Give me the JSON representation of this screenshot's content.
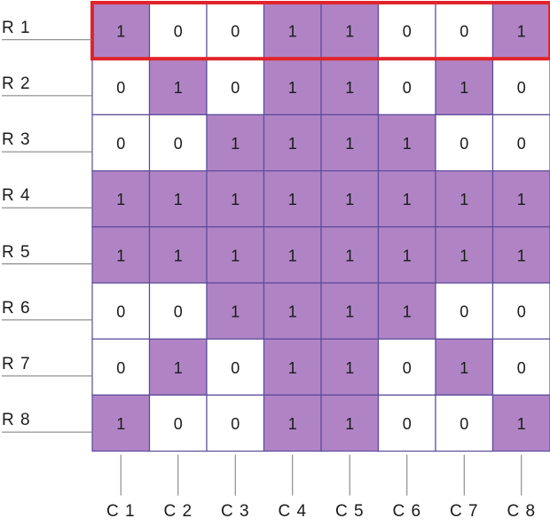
{
  "row_labels": [
    "R 1",
    "R 2",
    "R 3",
    "R 4",
    "R 5",
    "R 6",
    "R 7",
    "R 8"
  ],
  "column_labels": [
    "C 1",
    "C 2",
    "C 3",
    "C 4",
    "C 5",
    "C 6",
    "C 7",
    "C 8"
  ],
  "matrix": [
    [
      1,
      0,
      0,
      1,
      1,
      0,
      0,
      1
    ],
    [
      0,
      1,
      0,
      1,
      1,
      0,
      1,
      0
    ],
    [
      0,
      0,
      1,
      1,
      1,
      1,
      0,
      0
    ],
    [
      1,
      1,
      1,
      1,
      1,
      1,
      1,
      1
    ],
    [
      1,
      1,
      1,
      1,
      1,
      1,
      1,
      1
    ],
    [
      0,
      0,
      1,
      1,
      1,
      1,
      0,
      0
    ],
    [
      0,
      1,
      0,
      1,
      1,
      0,
      1,
      0
    ],
    [
      1,
      0,
      0,
      1,
      1,
      0,
      0,
      1
    ]
  ],
  "highlighted_row": 1,
  "colors": {
    "filled_cell": "#b084c4",
    "empty_cell": "#ffffff",
    "grid_line": "#5b4a9c",
    "highlight_border": "#e0242a",
    "label_leader": "#777777"
  }
}
